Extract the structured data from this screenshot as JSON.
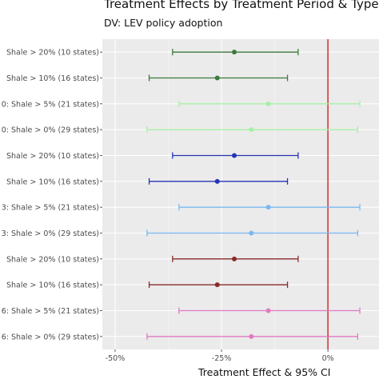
{
  "chart_data": {
    "type": "scatter",
    "title": "Treatment Effects by Treatment Period & Type",
    "subtitle": "DV: LEV policy adoption",
    "xlabel": "Treatment Effect & 95% CI",
    "ylabel": "",
    "xlim": [
      -0.53,
      0.12
    ],
    "grid": true,
    "reference_line": {
      "x": 0,
      "color": "#cc2222"
    },
    "xticks": [
      {
        "value": -0.5,
        "label": "-50%"
      },
      {
        "value": -0.25,
        "label": "-25%"
      },
      {
        "value": 0,
        "label": "0%"
      }
    ],
    "categories": [
      "Shale > 20% (10 states)",
      "Shale > 10% (16 states)",
      "0: Shale > 5% (21 states)",
      "0: Shale > 0% (29 states)",
      "Shale > 20% (10 states)",
      "Shale > 10% (16 states)",
      "3: Shale > 5% (21 states)",
      "3: Shale > 0% (29 states)",
      "Shale > 20% (10 states)",
      "Shale > 10% (16 states)",
      "6: Shale > 5% (21 states)",
      "6: Shale > 0% (29 states)"
    ],
    "points": [
      {
        "label": "Shale > 20% (10 states)",
        "estimate": -0.22,
        "lower": -0.365,
        "upper": -0.07,
        "color": "#3d7a3d"
      },
      {
        "label": "Shale > 10% (16 states)",
        "estimate": -0.26,
        "lower": -0.42,
        "upper": -0.095,
        "color": "#3d7a3d"
      },
      {
        "label": "0: Shale > 5% (21 states)",
        "estimate": -0.14,
        "lower": -0.35,
        "upper": 0.075,
        "color": "#a6f0a6"
      },
      {
        "label": "0: Shale > 0% (29 states)",
        "estimate": -0.18,
        "lower": -0.425,
        "upper": 0.07,
        "color": "#a6f0a6"
      },
      {
        "label": "Shale > 20% (10 states)",
        "estimate": -0.22,
        "lower": -0.365,
        "upper": -0.07,
        "color": "#2633b5"
      },
      {
        "label": "Shale > 10% (16 states)",
        "estimate": -0.26,
        "lower": -0.42,
        "upper": -0.095,
        "color": "#2633b5"
      },
      {
        "label": "3: Shale > 5% (21 states)",
        "estimate": -0.14,
        "lower": -0.35,
        "upper": 0.075,
        "color": "#79b8f2"
      },
      {
        "label": "3: Shale > 0% (29 states)",
        "estimate": -0.18,
        "lower": -0.425,
        "upper": 0.07,
        "color": "#79b8f2"
      },
      {
        "label": "Shale > 20% (10 states)",
        "estimate": -0.22,
        "lower": -0.365,
        "upper": -0.07,
        "color": "#8a2a2a"
      },
      {
        "label": "Shale > 10% (16 states)",
        "estimate": -0.26,
        "lower": -0.42,
        "upper": -0.095,
        "color": "#8a2a2a"
      },
      {
        "label": "6: Shale > 5% (21 states)",
        "estimate": -0.14,
        "lower": -0.35,
        "upper": 0.075,
        "color": "#e07ac2"
      },
      {
        "label": "6: Shale > 0% (29 states)",
        "estimate": -0.18,
        "lower": -0.425,
        "upper": 0.07,
        "color": "#e07ac2"
      }
    ]
  }
}
